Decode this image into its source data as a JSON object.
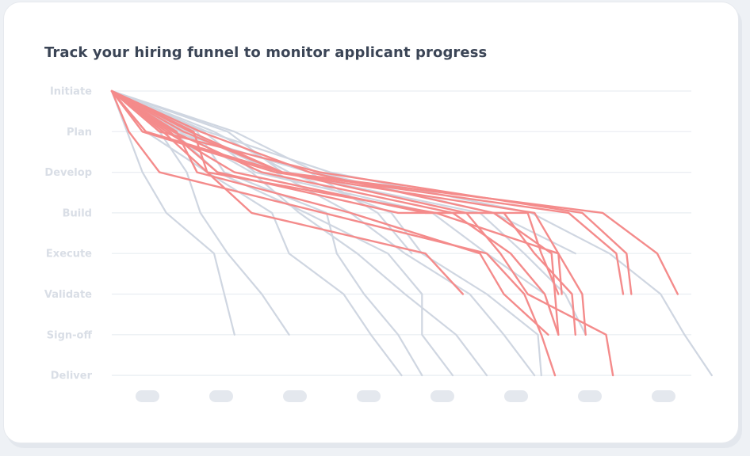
{
  "title": "Track your hiring funnel to monitor applicant progress",
  "chart_data": {
    "type": "line",
    "title": "Track your hiring funnel to monitor applicant progress",
    "stages": [
      "Initiate",
      "Plan",
      "Develop",
      "Build",
      "Execute",
      "Validate",
      "Sign-off",
      "Deliver"
    ],
    "x_ticks": [
      "",
      "",
      "",
      "",
      "",
      "",
      "",
      ""
    ],
    "xlim": [
      0,
      8.4
    ],
    "ylim": [
      0,
      7
    ],
    "grid": true,
    "colors": {
      "grey": "#cfd6e1",
      "red": "#f48b8b",
      "grid": "#e9edf2",
      "tick_pill": "#e4e8ee"
    },
    "series": [
      {
        "group": "grey",
        "points": [
          [
            0,
            0
          ],
          [
            0.45,
            2
          ],
          [
            0.8,
            3
          ],
          [
            1.5,
            4
          ],
          [
            1.65,
            5
          ],
          [
            1.8,
            6
          ]
        ]
      },
      {
        "group": "grey",
        "points": [
          [
            0,
            0
          ],
          [
            0.7,
            1
          ],
          [
            1.1,
            2
          ],
          [
            1.3,
            3
          ],
          [
            1.7,
            4
          ],
          [
            2.2,
            5
          ],
          [
            2.6,
            6
          ]
        ]
      },
      {
        "group": "grey",
        "points": [
          [
            0,
            0
          ],
          [
            0.5,
            1
          ],
          [
            1.4,
            2
          ],
          [
            2.35,
            3
          ],
          [
            2.6,
            4
          ],
          [
            3.4,
            5
          ],
          [
            3.8,
            6
          ],
          [
            4.25,
            7
          ]
        ]
      },
      {
        "group": "grey",
        "points": [
          [
            0,
            0
          ],
          [
            0.9,
            1
          ],
          [
            1.55,
            2
          ],
          [
            2.85,
            3
          ],
          [
            4.05,
            4
          ],
          [
            4.55,
            5
          ],
          [
            4.55,
            6
          ],
          [
            5.0,
            7
          ]
        ]
      },
      {
        "group": "grey",
        "points": [
          [
            0,
            0
          ],
          [
            1.25,
            1
          ],
          [
            1.65,
            2
          ],
          [
            3.15,
            3
          ],
          [
            3.3,
            4
          ],
          [
            3.7,
            5
          ],
          [
            4.2,
            6
          ],
          [
            4.55,
            7
          ]
        ]
      },
      {
        "group": "grey",
        "points": [
          [
            0,
            0
          ],
          [
            1.0,
            1
          ],
          [
            2.05,
            2
          ],
          [
            2.75,
            3
          ],
          [
            3.6,
            4
          ],
          [
            4.3,
            5
          ],
          [
            5.05,
            6
          ],
          [
            5.5,
            7
          ]
        ]
      },
      {
        "group": "grey",
        "points": [
          [
            0,
            0
          ],
          [
            1.5,
            1
          ],
          [
            2.6,
            2
          ],
          [
            4.1,
            3
          ],
          [
            4.55,
            4
          ],
          [
            5.5,
            5
          ],
          [
            6.25,
            6
          ],
          [
            6.3,
            7
          ]
        ]
      },
      {
        "group": "grey",
        "points": [
          [
            0,
            0
          ],
          [
            1.1,
            1
          ],
          [
            2.4,
            2
          ],
          [
            3.5,
            3
          ],
          [
            4.3,
            4
          ],
          [
            5.25,
            5
          ],
          [
            5.75,
            6
          ],
          [
            6.2,
            7
          ]
        ]
      },
      {
        "group": "grey",
        "points": [
          [
            0,
            0
          ],
          [
            1.35,
            1
          ],
          [
            2.1,
            2
          ],
          [
            4.7,
            3
          ],
          [
            5.5,
            4
          ],
          [
            6.35,
            5
          ],
          [
            6.55,
            6
          ]
        ]
      },
      {
        "group": "grey",
        "points": [
          [
            0,
            0
          ],
          [
            1.7,
            1
          ],
          [
            2.5,
            2
          ],
          [
            5.4,
            3
          ],
          [
            6.05,
            4
          ],
          [
            6.65,
            5
          ],
          [
            6.95,
            6
          ]
        ]
      },
      {
        "group": "grey",
        "points": [
          [
            0,
            0
          ],
          [
            1.4,
            1
          ],
          [
            3.2,
            2
          ],
          [
            6.15,
            3
          ],
          [
            7.3,
            4
          ],
          [
            8.05,
            5
          ],
          [
            8.4,
            6
          ],
          [
            8.8,
            7
          ]
        ]
      },
      {
        "group": "grey",
        "points": [
          [
            0,
            0
          ],
          [
            1.8,
            1
          ],
          [
            3.0,
            2
          ],
          [
            5.6,
            3
          ],
          [
            6.8,
            4
          ]
        ]
      },
      {
        "group": "grey",
        "points": [
          [
            0,
            0
          ],
          [
            0.9,
            1
          ],
          [
            2.9,
            2
          ],
          [
            3.9,
            3
          ],
          [
            4.4,
            4
          ]
        ]
      },
      {
        "group": "red",
        "points": [
          [
            0,
            0
          ],
          [
            0.25,
            1
          ],
          [
            0.7,
            2
          ],
          [
            5.5,
            4
          ],
          [
            6.05,
            5
          ],
          [
            6.3,
            6
          ],
          [
            6.5,
            7
          ]
        ]
      },
      {
        "group": "red",
        "points": [
          [
            0,
            0
          ],
          [
            0.5,
            1
          ],
          [
            2.5,
            2
          ],
          [
            5.2,
            3
          ],
          [
            5.7,
            4
          ],
          [
            6.1,
            5
          ],
          [
            7.25,
            6
          ],
          [
            7.35,
            7
          ]
        ]
      },
      {
        "group": "red",
        "points": [
          [
            0,
            0
          ],
          [
            0.85,
            1
          ],
          [
            1.55,
            2
          ],
          [
            4.2,
            3
          ],
          [
            5.75,
            3
          ],
          [
            6.2,
            4
          ],
          [
            6.75,
            5
          ],
          [
            6.8,
            6
          ]
        ]
      },
      {
        "group": "red",
        "points": [
          [
            0,
            0
          ],
          [
            1.3,
            1
          ],
          [
            2.9,
            2
          ],
          [
            5.6,
            3
          ],
          [
            6.45,
            4
          ],
          [
            6.5,
            5
          ],
          [
            6.55,
            6
          ]
        ]
      },
      {
        "group": "red",
        "points": [
          [
            0,
            0
          ],
          [
            1.05,
            1
          ],
          [
            2.5,
            2
          ],
          [
            6.7,
            3
          ],
          [
            7.4,
            4
          ],
          [
            7.5,
            5
          ]
        ]
      },
      {
        "group": "red",
        "points": [
          [
            0,
            0
          ],
          [
            1.15,
            1
          ],
          [
            2.5,
            2
          ],
          [
            7.2,
            3
          ],
          [
            8.0,
            4
          ],
          [
            8.3,
            5
          ]
        ]
      },
      {
        "group": "red",
        "points": [
          [
            0,
            0
          ],
          [
            0.9,
            1
          ],
          [
            2.2,
            2
          ],
          [
            5.0,
            3
          ],
          [
            5.85,
            4
          ],
          [
            6.35,
            5
          ],
          [
            6.55,
            6
          ]
        ]
      },
      {
        "group": "red",
        "points": [
          [
            0,
            0
          ],
          [
            0.8,
            1
          ],
          [
            1.8,
            2
          ],
          [
            4.6,
            3
          ],
          [
            6.1,
            3
          ],
          [
            6.3,
            4
          ],
          [
            6.55,
            5
          ]
        ]
      },
      {
        "group": "red",
        "points": [
          [
            0,
            0
          ],
          [
            0.95,
            1
          ],
          [
            1.25,
            2
          ],
          [
            3.5,
            3
          ],
          [
            5.4,
            4
          ],
          [
            5.75,
            5
          ],
          [
            6.4,
            6
          ]
        ]
      },
      {
        "group": "red",
        "points": [
          [
            0,
            0
          ],
          [
            0.75,
            1
          ],
          [
            2.05,
            3
          ],
          [
            4.6,
            4
          ],
          [
            5.15,
            5
          ]
        ]
      },
      {
        "group": "red",
        "points": [
          [
            0,
            0
          ],
          [
            0.7,
            1
          ],
          [
            3.05,
            2
          ],
          [
            6.9,
            3
          ],
          [
            7.55,
            4
          ],
          [
            7.62,
            5
          ]
        ]
      },
      {
        "group": "red",
        "points": [
          [
            0,
            0
          ],
          [
            1.2,
            1
          ],
          [
            1.4,
            2
          ],
          [
            4.75,
            3
          ],
          [
            6.55,
            4
          ],
          [
            6.9,
            5
          ],
          [
            6.95,
            6
          ]
        ]
      },
      {
        "group": "red",
        "points": [
          [
            0,
            0
          ],
          [
            0.45,
            1
          ],
          [
            2.4,
            2
          ],
          [
            6.2,
            3
          ],
          [
            6.55,
            4
          ],
          [
            6.6,
            5
          ]
        ]
      }
    ]
  }
}
